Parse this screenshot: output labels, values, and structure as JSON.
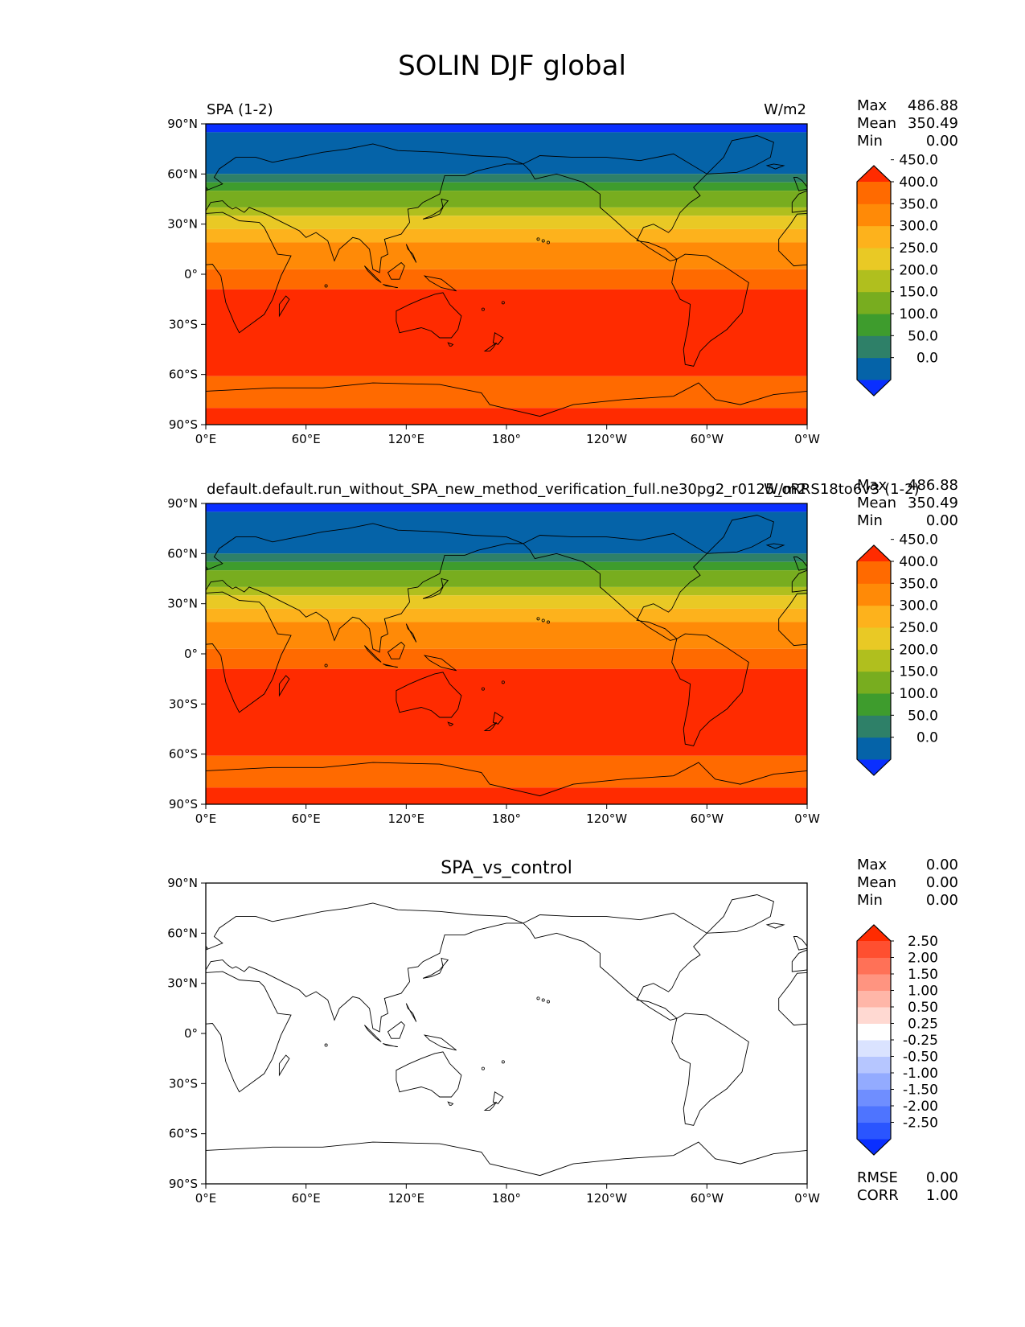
{
  "figure_title": "SOLIN DJF global",
  "chart_data": [
    {
      "type": "heatmap",
      "title_left": "SPA (1-2)",
      "title_center": "",
      "title_right": "W/m2",
      "xlabels": [
        "0°E",
        "60°E",
        "120°E",
        "180°",
        "120°W",
        "60°W",
        "0°W"
      ],
      "ylabels": [
        "90°N",
        "60°N",
        "30°N",
        "0°",
        "30°S",
        "60°S",
        "90°S"
      ],
      "stats": {
        "max_label": "Max",
        "max": "486.88",
        "mean_label": "Mean",
        "mean": "350.49",
        "min_label": "Min",
        "min": "0.00"
      },
      "levels": [
        0,
        50,
        100,
        150,
        200,
        250,
        300,
        350,
        400,
        450
      ],
      "level_labels": [
        "0.0",
        "50.0",
        "100.0",
        "150.0",
        "200.0",
        "250.0",
        "300.0",
        "350.0",
        "400.0",
        "450.0"
      ],
      "colors": [
        "#0a2fff",
        "#0563a8",
        "#2e8068",
        "#3e9c2d",
        "#78ad1f",
        "#b0bf1e",
        "#e9c925",
        "#fdb21c",
        "#ff8a07",
        "#ff6a00",
        "#ff2b00"
      ],
      "bands": [
        {
          "lat_top": 90,
          "lat_bottom": 85,
          "color": "#0a2fff"
        },
        {
          "lat_top": 85,
          "lat_bottom": 60,
          "color": "#0563a8"
        },
        {
          "lat_top": 60,
          "lat_bottom": 55,
          "color": "#2e8068"
        },
        {
          "lat_top": 55,
          "lat_bottom": 50,
          "color": "#3e9c2d"
        },
        {
          "lat_top": 50,
          "lat_bottom": 45,
          "color": "#78ad1f"
        },
        {
          "lat_top": 45,
          "lat_bottom": 40,
          "color": "#78ad1f"
        },
        {
          "lat_top": 40,
          "lat_bottom": 35,
          "color": "#b0bf1e"
        },
        {
          "lat_top": 35,
          "lat_bottom": 27,
          "color": "#e9c925"
        },
        {
          "lat_top": 27,
          "lat_bottom": 19,
          "color": "#fdb21c"
        },
        {
          "lat_top": 19,
          "lat_bottom": 3,
          "color": "#ff8a07"
        },
        {
          "lat_top": 3,
          "lat_bottom": -9,
          "color": "#ff6a00"
        },
        {
          "lat_top": -9,
          "lat_bottom": -61,
          "color": "#ff2b00"
        },
        {
          "lat_top": -61,
          "lat_bottom": -80,
          "color": "#ff6a00"
        },
        {
          "lat_top": -80,
          "lat_bottom": -90,
          "color": "#ff2b00"
        }
      ]
    },
    {
      "type": "heatmap",
      "title_left": "default.default.run_without_SPA_new_method_verification_full.ne30pg2_r0125_oRRS18to6v3 (1-2)",
      "title_center": "",
      "title_right": "W/m2",
      "xlabels": [
        "0°E",
        "60°E",
        "120°E",
        "180°",
        "120°W",
        "60°W",
        "0°W"
      ],
      "ylabels": [
        "90°N",
        "60°N",
        "30°N",
        "0°",
        "30°S",
        "60°S",
        "90°S"
      ],
      "stats": {
        "max_label": "Max",
        "max": "486.88",
        "mean_label": "Mean",
        "mean": "350.49",
        "min_label": "Min",
        "min": "0.00"
      },
      "levels": [
        0,
        50,
        100,
        150,
        200,
        250,
        300,
        350,
        400,
        450
      ],
      "level_labels": [
        "0.0",
        "50.0",
        "100.0",
        "150.0",
        "200.0",
        "250.0",
        "300.0",
        "350.0",
        "400.0",
        "450.0"
      ],
      "colors": [
        "#0a2fff",
        "#0563a8",
        "#2e8068",
        "#3e9c2d",
        "#78ad1f",
        "#b0bf1e",
        "#e9c925",
        "#fdb21c",
        "#ff8a07",
        "#ff6a00",
        "#ff2b00"
      ],
      "bands": [
        {
          "lat_top": 90,
          "lat_bottom": 85,
          "color": "#0a2fff"
        },
        {
          "lat_top": 85,
          "lat_bottom": 60,
          "color": "#0563a8"
        },
        {
          "lat_top": 60,
          "lat_bottom": 55,
          "color": "#2e8068"
        },
        {
          "lat_top": 55,
          "lat_bottom": 50,
          "color": "#3e9c2d"
        },
        {
          "lat_top": 50,
          "lat_bottom": 45,
          "color": "#78ad1f"
        },
        {
          "lat_top": 45,
          "lat_bottom": 40,
          "color": "#78ad1f"
        },
        {
          "lat_top": 40,
          "lat_bottom": 35,
          "color": "#b0bf1e"
        },
        {
          "lat_top": 35,
          "lat_bottom": 27,
          "color": "#e9c925"
        },
        {
          "lat_top": 27,
          "lat_bottom": 19,
          "color": "#fdb21c"
        },
        {
          "lat_top": 19,
          "lat_bottom": 3,
          "color": "#ff8a07"
        },
        {
          "lat_top": 3,
          "lat_bottom": -9,
          "color": "#ff6a00"
        },
        {
          "lat_top": -9,
          "lat_bottom": -61,
          "color": "#ff2b00"
        },
        {
          "lat_top": -61,
          "lat_bottom": -80,
          "color": "#ff6a00"
        },
        {
          "lat_top": -80,
          "lat_bottom": -90,
          "color": "#ff2b00"
        }
      ]
    },
    {
      "type": "heatmap",
      "title_left": "",
      "title_center": "SPA_vs_control",
      "title_right": "",
      "xlabels": [
        "0°E",
        "60°E",
        "120°E",
        "180°",
        "120°W",
        "60°W",
        "0°W"
      ],
      "ylabels": [
        "90°N",
        "60°N",
        "30°N",
        "0°",
        "30°S",
        "60°S",
        "90°S"
      ],
      "stats": {
        "max_label": "Max",
        "max": "0.00",
        "mean_label": "Mean",
        "mean": "0.00",
        "min_label": "Min",
        "min": "0.00"
      },
      "levels": [
        -2.5,
        -2.0,
        -1.5,
        -1.0,
        -0.5,
        -0.25,
        0.25,
        0.5,
        1.0,
        1.5,
        2.0,
        2.5
      ],
      "level_labels": [
        "-2.50",
        "-2.00",
        "-1.50",
        "-1.00",
        "-0.50",
        "-0.25",
        "0.25",
        "0.50",
        "1.00",
        "1.50",
        "2.00",
        "2.50"
      ],
      "colors": [
        "#0a2fff",
        "#2a55ff",
        "#4e74ff",
        "#6f8eff",
        "#93abff",
        "#b6c6ff",
        "#dae3ff",
        "#ffffff",
        "#ffd9d2",
        "#ffb6a8",
        "#ff9480",
        "#ff7157",
        "#ff4f30",
        "#ff2b00"
      ],
      "bands": [
        {
          "lat_top": 90,
          "lat_bottom": -90,
          "color": "#ffffff"
        }
      ],
      "extra_stats": {
        "rmse_label": "RMSE",
        "rmse": "0.00",
        "corr_label": "CORR",
        "corr": "1.00"
      }
    }
  ]
}
